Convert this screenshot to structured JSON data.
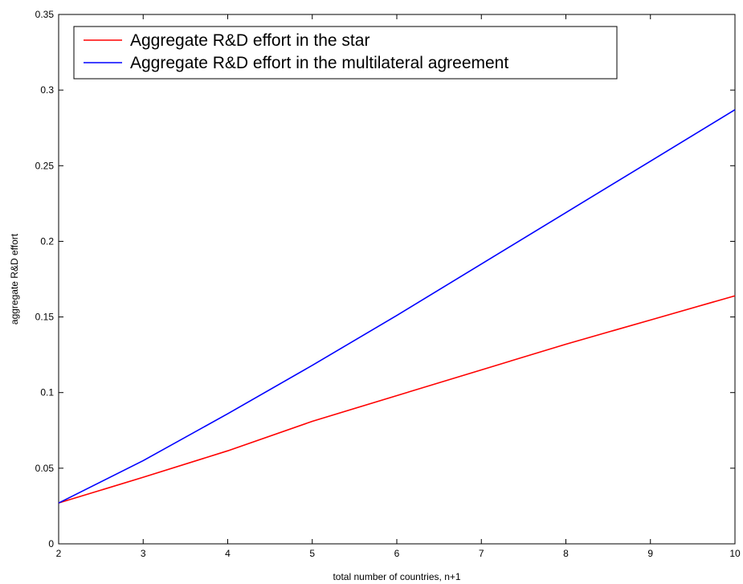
{
  "chart_data": {
    "type": "line",
    "title": "",
    "xlabel": "total number of countries, n+1",
    "ylabel": "aggregate R&D effort",
    "xlim": [
      2,
      10
    ],
    "ylim": [
      0,
      0.35
    ],
    "xticks": [
      2,
      3,
      4,
      5,
      6,
      7,
      8,
      9,
      10
    ],
    "yticks": [
      0,
      0.05,
      0.1,
      0.15,
      0.2,
      0.25,
      0.3,
      0.35
    ],
    "xtick_labels": [
      "2",
      "3",
      "4",
      "5",
      "6",
      "7",
      "8",
      "9",
      "10"
    ],
    "ytick_labels": [
      "0",
      "0.05",
      "0.1",
      "0.15",
      "0.2",
      "0.25",
      "0.3",
      "0.35"
    ],
    "grid": false,
    "legend_position": "top-left",
    "series": [
      {
        "name": "Aggregate R&D effort in the star",
        "color": "#ff0000",
        "x": [
          2,
          3,
          4,
          5,
          6,
          7,
          8,
          9,
          10
        ],
        "y": [
          0.027,
          0.044,
          0.0615,
          0.081,
          0.098,
          0.115,
          0.132,
          0.148,
          0.164
        ]
      },
      {
        "name": "Aggregate R&D effort in the multilateral agreement",
        "color": "#0000ff",
        "x": [
          2,
          3,
          4,
          5,
          6,
          7,
          8,
          9,
          10
        ],
        "y": [
          0.027,
          0.055,
          0.086,
          0.118,
          0.151,
          0.185,
          0.219,
          0.253,
          0.287
        ]
      }
    ]
  }
}
